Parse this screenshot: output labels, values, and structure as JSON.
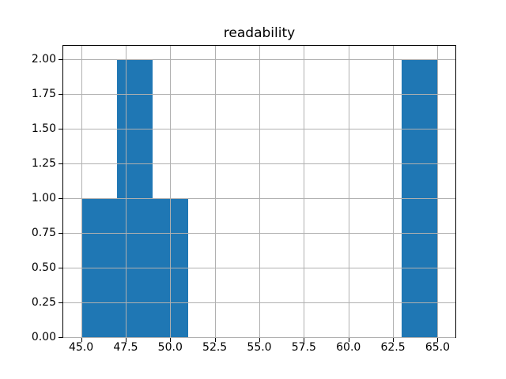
{
  "chart_data": {
    "type": "bar",
    "subtype": "histogram",
    "title": "readability",
    "xlabel": "",
    "ylabel": "",
    "bin_edges": [
      45,
      47,
      49,
      51,
      53,
      55,
      57,
      59,
      61,
      63,
      65
    ],
    "counts": [
      1,
      2,
      1,
      0,
      0,
      0,
      0,
      0,
      0,
      2
    ],
    "xlim": [
      44,
      66
    ],
    "ylim": [
      0,
      2.1
    ],
    "x_ticks": [
      {
        "value": 45.0,
        "label": "45.0"
      },
      {
        "value": 47.5,
        "label": "47.5"
      },
      {
        "value": 50.0,
        "label": "50.0"
      },
      {
        "value": 52.5,
        "label": "52.5"
      },
      {
        "value": 55.0,
        "label": "55.0"
      },
      {
        "value": 57.5,
        "label": "57.5"
      },
      {
        "value": 60.0,
        "label": "60.0"
      },
      {
        "value": 62.5,
        "label": "62.5"
      },
      {
        "value": 65.0,
        "label": "65.0"
      }
    ],
    "y_ticks": [
      {
        "value": 0.0,
        "label": "0.00"
      },
      {
        "value": 0.25,
        "label": "0.25"
      },
      {
        "value": 0.5,
        "label": "0.50"
      },
      {
        "value": 0.75,
        "label": "0.75"
      },
      {
        "value": 1.0,
        "label": "1.00"
      },
      {
        "value": 1.25,
        "label": "1.25"
      },
      {
        "value": 1.5,
        "label": "1.50"
      },
      {
        "value": 1.75,
        "label": "1.75"
      },
      {
        "value": 2.0,
        "label": "2.00"
      }
    ],
    "grid": true,
    "grid_over_bars": true,
    "legend": false,
    "colors": {
      "bar": "#1f77b4",
      "grid": "#b0b0b0",
      "spine": "#000000",
      "text": "#000000",
      "background": "#ffffff"
    }
  }
}
